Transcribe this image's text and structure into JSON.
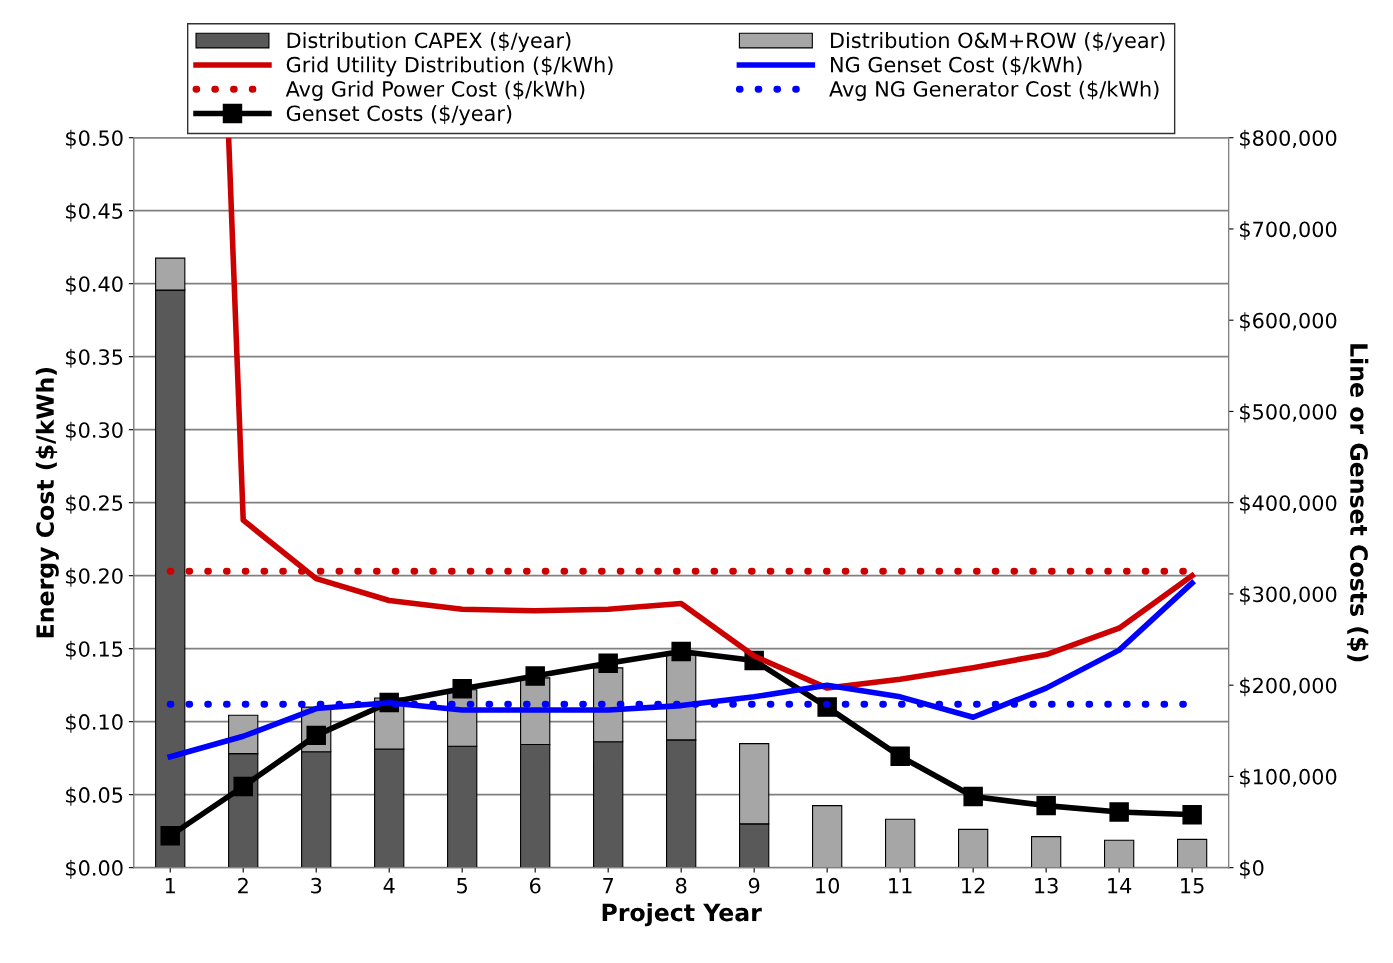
{
  "chart_data": {
    "type": "bar",
    "xlabel": "Project Year",
    "ylabel": "Energy Cost ($/kWh)",
    "y2label": "Line or Genset Costs ($)",
    "x": [
      1,
      2,
      3,
      4,
      5,
      6,
      7,
      8,
      9,
      10,
      11,
      12,
      13,
      14,
      15
    ],
    "xlim": [
      0.5,
      15.5
    ],
    "xticks": [
      1,
      2,
      3,
      4,
      5,
      6,
      7,
      8,
      9,
      10,
      11,
      12,
      13,
      14,
      15
    ],
    "ylim": [
      0,
      0.5
    ],
    "yticks": [
      {
        "value": 0,
        "label": "$0.00"
      },
      {
        "value": 0.05,
        "label": "$0.05"
      },
      {
        "value": 0.1,
        "label": "$0.10"
      },
      {
        "value": 0.15,
        "label": "$0.15"
      },
      {
        "value": 0.2,
        "label": "$0.20"
      },
      {
        "value": 0.25,
        "label": "$0.25"
      },
      {
        "value": 0.3,
        "label": "$0.30"
      },
      {
        "value": 0.35,
        "label": "$0.35"
      },
      {
        "value": 0.4,
        "label": "$0.40"
      },
      {
        "value": 0.45,
        "label": "$0.45"
      },
      {
        "value": 0.5,
        "label": "$0.50"
      }
    ],
    "y2lim": [
      0,
      800000
    ],
    "y2ticks": [
      {
        "value": 0,
        "label": "$0"
      },
      {
        "value": 100000,
        "label": "$100,000"
      },
      {
        "value": 200000,
        "label": "$200,000"
      },
      {
        "value": 300000,
        "label": "$300,000"
      },
      {
        "value": 400000,
        "label": "$400,000"
      },
      {
        "value": 500000,
        "label": "$500,000"
      },
      {
        "value": 600000,
        "label": "$600,000"
      },
      {
        "value": 700000,
        "label": "$700,000"
      },
      {
        "value": 800000,
        "label": "$800,000"
      }
    ],
    "stacked": true,
    "grid": "y",
    "legend": "top",
    "series": [
      {
        "name": "Distribution CAPEX ($/year)",
        "axis": "y2",
        "color": "#595959",
        "values": [
          633000,
          125000,
          127000,
          130000,
          133000,
          135000,
          138000,
          140000,
          48000,
          0,
          0,
          0,
          0,
          0,
          0
        ]
      },
      {
        "name": "Distribution O&M+ROW ($/year)",
        "axis": "y2",
        "color": "#a6a6a6",
        "values": [
          35000,
          42000,
          49000,
          56000,
          62000,
          73000,
          81000,
          93000,
          88000,
          68000,
          53000,
          42000,
          34000,
          30000,
          31000
        ]
      },
      {
        "name": "Grid Utility Distribution ($/kWh)",
        "type": "line",
        "color": "#cc0000",
        "line_style": "solid",
        "marker": "none",
        "x": [
          1.8,
          2,
          3,
          4,
          5,
          6,
          7,
          8,
          9,
          10,
          11,
          12,
          13,
          14,
          15
        ],
        "values": [
          0.5,
          0.238,
          0.198,
          0.183,
          0.177,
          0.176,
          0.177,
          0.181,
          0.145,
          0.123,
          0.129,
          0.137,
          0.146,
          0.164,
          0.2
        ]
      },
      {
        "name": "NG Genset Cost ($/kWh)",
        "type": "line",
        "color": "#0000ff",
        "line_style": "solid",
        "marker": "none",
        "values": [
          0.076,
          0.09,
          0.109,
          0.113,
          0.108,
          0.108,
          0.108,
          0.111,
          0.117,
          0.125,
          0.117,
          0.103,
          0.123,
          0.149,
          0.195
        ]
      },
      {
        "name": "Avg Grid Power Cost ($/kWh)",
        "type": "line",
        "color": "#cc0000",
        "line_style": "dotted",
        "marker": "none",
        "x": [
          1,
          15
        ],
        "values": [
          0.203,
          0.203
        ]
      },
      {
        "name": "Avg NG Generator Cost ($/kWh)",
        "type": "line",
        "color": "#0000ff",
        "line_style": "dotted",
        "marker": "none",
        "x": [
          1,
          15
        ],
        "values": [
          0.112,
          0.112
        ]
      },
      {
        "name": "Genset Costs ($/year)",
        "type": "line",
        "axis": "y2",
        "color": "#000000",
        "line_style": "solid",
        "marker": "square",
        "values": [
          35000,
          89000,
          145000,
          181000,
          196000,
          210000,
          224000,
          237000,
          227000,
          176000,
          122000,
          78000,
          68000,
          61000,
          58000
        ]
      }
    ]
  }
}
